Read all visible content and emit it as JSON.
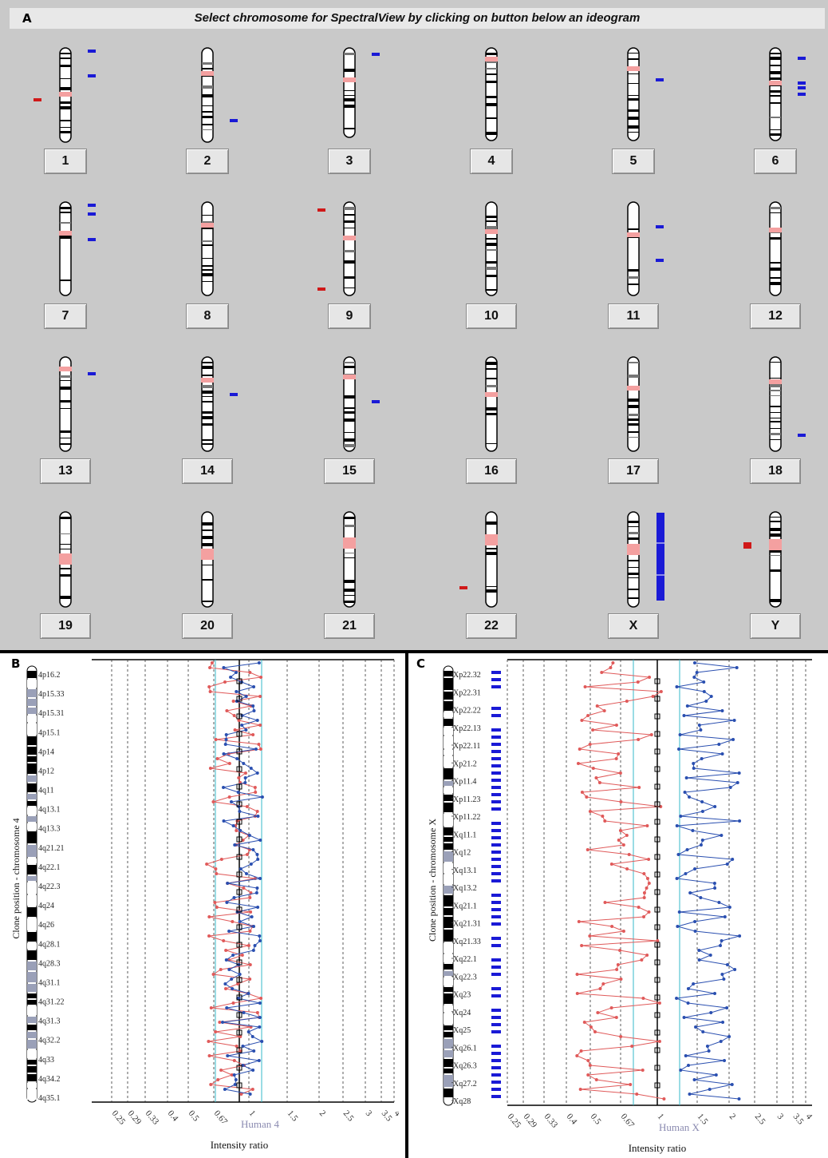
{
  "panelA": {
    "letter": "A",
    "title": "Select chromosome for SpectralView by clicking on button below an ideogram",
    "chromosomes": [
      "1",
      "2",
      "3",
      "4",
      "5",
      "6",
      "7",
      "8",
      "9",
      "10",
      "11",
      "12",
      "13",
      "14",
      "15",
      "16",
      "17",
      "18",
      "19",
      "20",
      "21",
      "22",
      "X",
      "Y"
    ]
  },
  "panelB": {
    "letter": "B",
    "ylabel": "Clone position - chromosome 4",
    "xlabel": "Intensity ratio",
    "watermark": "Human 4",
    "bands": [
      "4p16.2",
      "4p15.33",
      "4p15.31",
      "4p15.1",
      "4p14",
      "4p12",
      "4q11",
      "4q13.1",
      "4q13.3",
      "4q21.21",
      "4q22.1",
      "4q22.3",
      "4q24",
      "4q26",
      "4q28.1",
      "4q28.3",
      "4q31.1",
      "4q31.22",
      "4q31.3",
      "4q32.2",
      "4q33",
      "4q34.2",
      "4q35.1"
    ],
    "ticks": [
      "0.25",
      "0.29",
      "0.33",
      "0.4",
      "0.5",
      "0.67",
      "1",
      "1.5",
      "2",
      "2.5",
      "3",
      "3.5",
      "4"
    ]
  },
  "panelC": {
    "letter": "C",
    "ylabel": "Clone position - chromosome X",
    "xlabel": "Intensity ratio",
    "watermark": "Human X",
    "bands": [
      "Xp22.32",
      "Xp22.31",
      "Xp22.22",
      "Xp22.13",
      "Xp22.11",
      "Xp21.2",
      "Xp11.4",
      "Xp11.23",
      "Xp11.22",
      "Xq11.1",
      "Xq12",
      "Xq13.1",
      "Xq13.2",
      "Xq21.1",
      "Xq21.31",
      "Xq21.33",
      "Xq22.1",
      "Xq22.3",
      "Xq23",
      "Xq24",
      "Xq25",
      "Xq26.1",
      "Xq26.3",
      "Xq27.2",
      "Xq28"
    ],
    "ticks": [
      "0.25",
      "0.29",
      "0.33",
      "0.4",
      "0.5",
      "0.67",
      "1",
      "1.5",
      "2",
      "2.5",
      "3",
      "3.5",
      "4"
    ]
  },
  "colors": {
    "panel_bg": "#c9c9c9",
    "gain": "#1a1ad6",
    "loss": "#d01818",
    "centromere": "#f4a0a0",
    "red_trace": "#e05a5a",
    "blue_trace": "#2a4fb0",
    "teal_line": "#36b8c8"
  }
}
